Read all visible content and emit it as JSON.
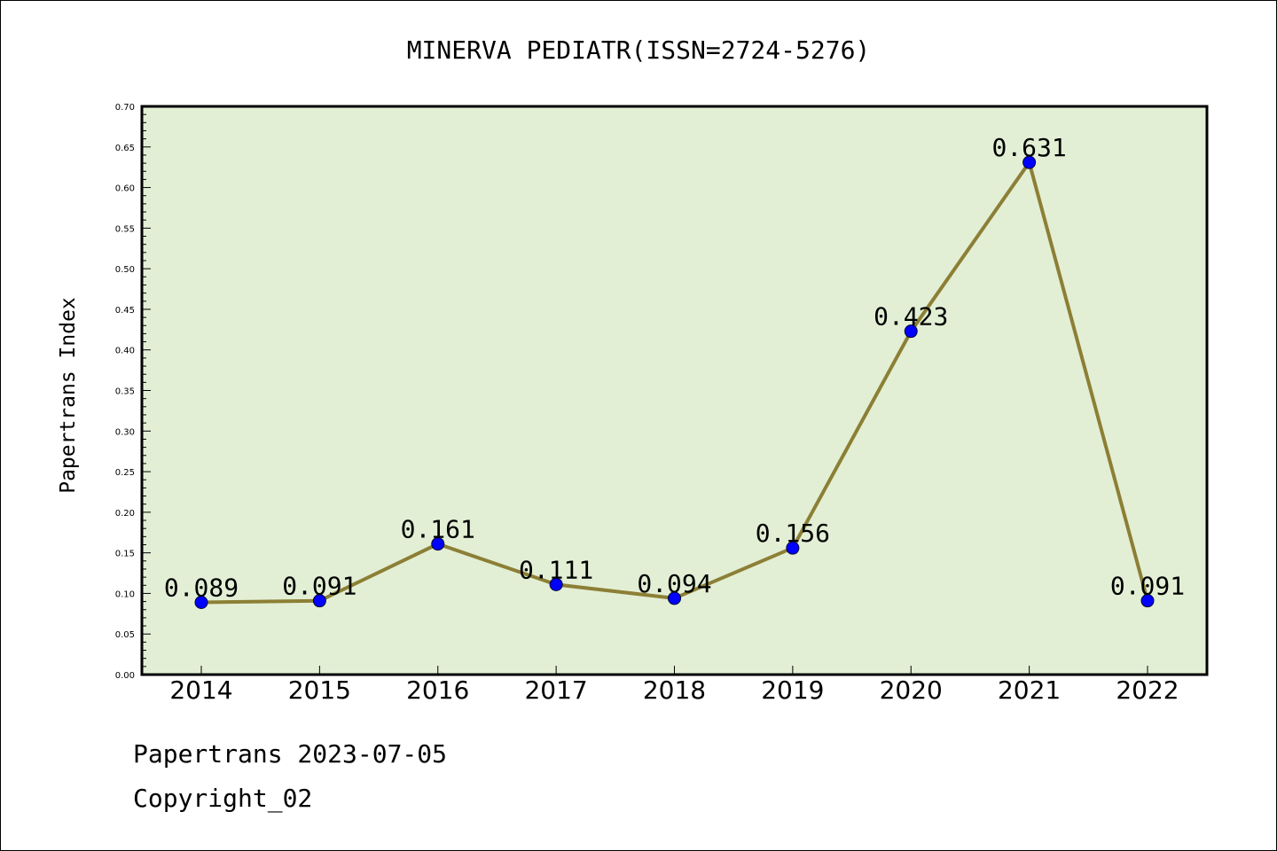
{
  "chart_data": {
    "type": "line",
    "title": "MINERVA PEDIATR(ISSN=2724-5276)",
    "xlabel": "",
    "ylabel": "Papertrans Index",
    "categories": [
      "2014",
      "2015",
      "2016",
      "2017",
      "2018",
      "2019",
      "2020",
      "2021",
      "2022"
    ],
    "series": [
      {
        "values": [
          0.089,
          0.091,
          0.161,
          0.111,
          0.094,
          0.156,
          0.423,
          0.631,
          0.091
        ],
        "data_labels": [
          "0.089",
          "0.091",
          "0.161",
          "0.111",
          "0.094",
          "0.156",
          "0.423",
          "0.631",
          "0.091"
        ]
      }
    ],
    "ylim": [
      0.0,
      0.7
    ],
    "yticks": [
      "0.00",
      "0.05",
      "0.10",
      "0.15",
      "0.20",
      "0.25",
      "0.30",
      "0.35",
      "0.40",
      "0.45",
      "0.50",
      "0.55",
      "0.60",
      "0.65",
      "0.70"
    ],
    "grid": false,
    "legend": "none",
    "colors": {
      "plot_background": "#e2efd5",
      "line": "#8c7f35",
      "marker": "#0000ff"
    }
  },
  "footer": {
    "line1": "Papertrans 2023-07-05",
    "line2": "Copyright_02"
  }
}
